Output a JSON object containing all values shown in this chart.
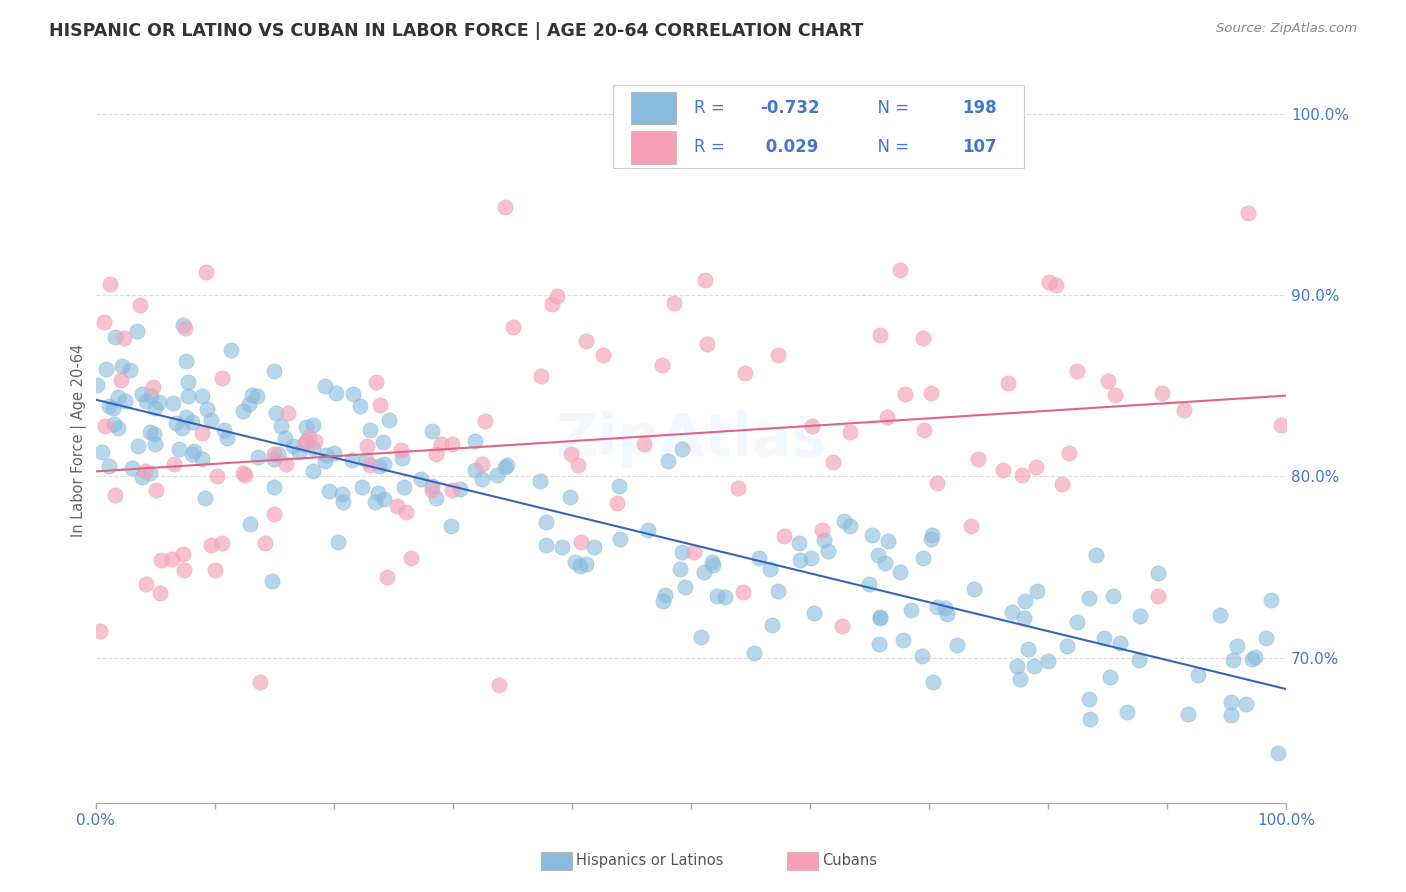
{
  "title": "HISPANIC OR LATINO VS CUBAN IN LABOR FORCE | AGE 20-64 CORRELATION CHART",
  "source": "Source: ZipAtlas.com",
  "ylabel": "In Labor Force | Age 20-64",
  "xlim": [
    0.0,
    1.0
  ],
  "ylim": [
    0.62,
    1.02
  ],
  "x_ticks": [
    0.0,
    0.1,
    0.2,
    0.3,
    0.4,
    0.5,
    0.6,
    0.7,
    0.8,
    0.9,
    1.0
  ],
  "x_tick_labels": [
    "0.0%",
    "",
    "",
    "",
    "",
    "",
    "",
    "",
    "",
    "",
    "100.0%"
  ],
  "y_ticks": [
    0.7,
    0.8,
    0.9,
    1.0
  ],
  "y_tick_labels": [
    "70.0%",
    "80.0%",
    "90.0%",
    "100.0%"
  ],
  "series1_color": "#88bbdd",
  "series2_color": "#f4a0b8",
  "series1_edge": "#6699cc",
  "series2_edge": "#e87090",
  "line1_color": "#3366bb",
  "line2_color": "#dd6688",
  "R1": -0.732,
  "N1": 198,
  "R2": 0.029,
  "N2": 107,
  "watermark": "ZipAtlas",
  "title_color": "#333333",
  "source_color": "#888888",
  "axis_color": "#aaaaaa",
  "grid_color": "#dddddd",
  "tick_label_color": "#4477cc",
  "background_color": "#ffffff",
  "legend_box_color": "#4477cc",
  "legend_r_color": "#4477cc",
  "legend_n_color": "#4477cc",
  "legend_text_color": "#333333"
}
